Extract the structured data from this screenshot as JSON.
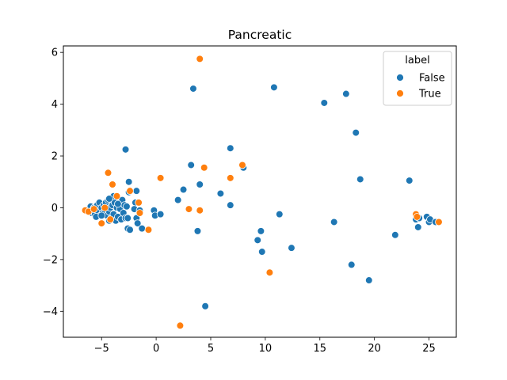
{
  "chart_data": {
    "type": "scatter",
    "title": "Pancreatic",
    "xlabel": "",
    "ylabel": "",
    "xlim": [
      -8.5,
      27.5
    ],
    "ylim": [
      -5.0,
      6.25
    ],
    "xticks": [
      -5,
      0,
      5,
      10,
      15,
      20,
      25
    ],
    "yticks": [
      -4,
      -2,
      0,
      2,
      4,
      6
    ],
    "grid": false,
    "legend": {
      "title": "label",
      "placement": "top-right",
      "entries": [
        {
          "name": "False",
          "color": "#1f77b4"
        },
        {
          "name": "True",
          "color": "#ff7f0e"
        }
      ]
    },
    "series": [
      {
        "name": "False",
        "color": "#1f77b4",
        "points": [
          [
            -6.2,
            -0.1
          ],
          [
            -6.0,
            0.05
          ],
          [
            -5.9,
            -0.2
          ],
          [
            -5.8,
            -0.1
          ],
          [
            -5.7,
            0.0
          ],
          [
            -5.6,
            -0.25
          ],
          [
            -5.5,
            -0.05
          ],
          [
            -5.4,
            0.1
          ],
          [
            -5.3,
            -0.15
          ],
          [
            -5.2,
            0.2
          ],
          [
            -5.1,
            -0.3
          ],
          [
            -5.0,
            0.0
          ],
          [
            -4.9,
            -0.2
          ],
          [
            -4.8,
            0.1
          ],
          [
            -4.7,
            -0.1
          ],
          [
            -4.6,
            0.2
          ],
          [
            -4.5,
            -0.3
          ],
          [
            -4.4,
            0.3
          ],
          [
            -4.3,
            -0.15
          ],
          [
            -4.2,
            0.0
          ],
          [
            -4.1,
            -0.4
          ],
          [
            -4.0,
            0.1
          ],
          [
            -3.9,
            -0.25
          ],
          [
            -3.8,
            0.2
          ],
          [
            -3.7,
            -0.5
          ],
          [
            -3.6,
            0.0
          ],
          [
            -3.5,
            -0.35
          ],
          [
            -3.4,
            0.15
          ],
          [
            -3.3,
            -0.05
          ],
          [
            -3.2,
            -0.45
          ],
          [
            -3.1,
            0.3
          ],
          [
            -3.0,
            -0.2
          ],
          [
            -2.9,
            0.1
          ],
          [
            -2.8,
            -0.4
          ],
          [
            -2.7,
            0.05
          ],
          [
            -5.5,
            -0.35
          ],
          [
            -5.0,
            -0.3
          ],
          [
            -4.3,
            -0.5
          ],
          [
            -3.9,
            0.45
          ],
          [
            -4.3,
            0.35
          ],
          [
            -3.5,
            0.15
          ],
          [
            -2.6,
            -0.4
          ],
          [
            -2.8,
            2.25
          ],
          [
            -2.5,
            1.0
          ],
          [
            -2.5,
            0.6
          ],
          [
            -1.8,
            0.65
          ],
          [
            -1.9,
            0.2
          ],
          [
            -2.0,
            -0.05
          ],
          [
            -1.8,
            -0.4
          ],
          [
            -1.7,
            -0.6
          ],
          [
            -1.5,
            -0.1
          ],
          [
            -1.3,
            -0.8
          ],
          [
            -2.6,
            -0.8
          ],
          [
            -2.4,
            -0.85
          ],
          [
            -0.2,
            -0.1
          ],
          [
            -0.1,
            -0.3
          ],
          [
            0.4,
            -0.25
          ],
          [
            2.0,
            0.3
          ],
          [
            2.5,
            0.7
          ],
          [
            3.2,
            1.65
          ],
          [
            3.4,
            4.6
          ],
          [
            4.0,
            0.9
          ],
          [
            3.8,
            -0.9
          ],
          [
            4.5,
            -3.8
          ],
          [
            5.9,
            0.55
          ],
          [
            6.8,
            2.3
          ],
          [
            6.8,
            0.1
          ],
          [
            8.0,
            1.55
          ],
          [
            9.3,
            -1.25
          ],
          [
            9.6,
            -0.9
          ],
          [
            9.7,
            -1.7
          ],
          [
            10.8,
            4.65
          ],
          [
            11.3,
            -0.25
          ],
          [
            12.4,
            -1.55
          ],
          [
            15.4,
            4.05
          ],
          [
            16.3,
            -0.55
          ],
          [
            17.4,
            4.4
          ],
          [
            17.9,
            -2.2
          ],
          [
            18.3,
            2.9
          ],
          [
            18.7,
            1.1
          ],
          [
            19.5,
            -2.8
          ],
          [
            21.9,
            -1.05
          ],
          [
            23.2,
            1.05
          ],
          [
            23.8,
            -0.45
          ],
          [
            24.0,
            -0.75
          ],
          [
            24.1,
            -0.4
          ],
          [
            24.8,
            -0.35
          ],
          [
            25.0,
            -0.55
          ],
          [
            25.1,
            -0.45
          ],
          [
            25.6,
            -0.55
          ]
        ]
      },
      {
        "name": "True",
        "color": "#ff7f0e",
        "points": [
          [
            -6.5,
            -0.1
          ],
          [
            -6.2,
            -0.15
          ],
          [
            -5.7,
            -0.05
          ],
          [
            -5.0,
            -0.6
          ],
          [
            -4.7,
            0.0
          ],
          [
            -4.4,
            1.35
          ],
          [
            -4.0,
            0.9
          ],
          [
            -4.2,
            -0.45
          ],
          [
            -3.6,
            0.45
          ],
          [
            -2.4,
            0.65
          ],
          [
            -1.6,
            0.2
          ],
          [
            -1.5,
            -0.2
          ],
          [
            -0.7,
            -0.85
          ],
          [
            0.4,
            1.15
          ],
          [
            2.2,
            -4.55
          ],
          [
            3.0,
            -0.05
          ],
          [
            4.0,
            5.75
          ],
          [
            4.0,
            -0.1
          ],
          [
            4.4,
            1.55
          ],
          [
            6.8,
            1.15
          ],
          [
            7.9,
            1.65
          ],
          [
            10.4,
            -2.5
          ],
          [
            23.8,
            -0.25
          ],
          [
            23.9,
            -0.35
          ],
          [
            25.9,
            -0.55
          ]
        ]
      }
    ]
  }
}
